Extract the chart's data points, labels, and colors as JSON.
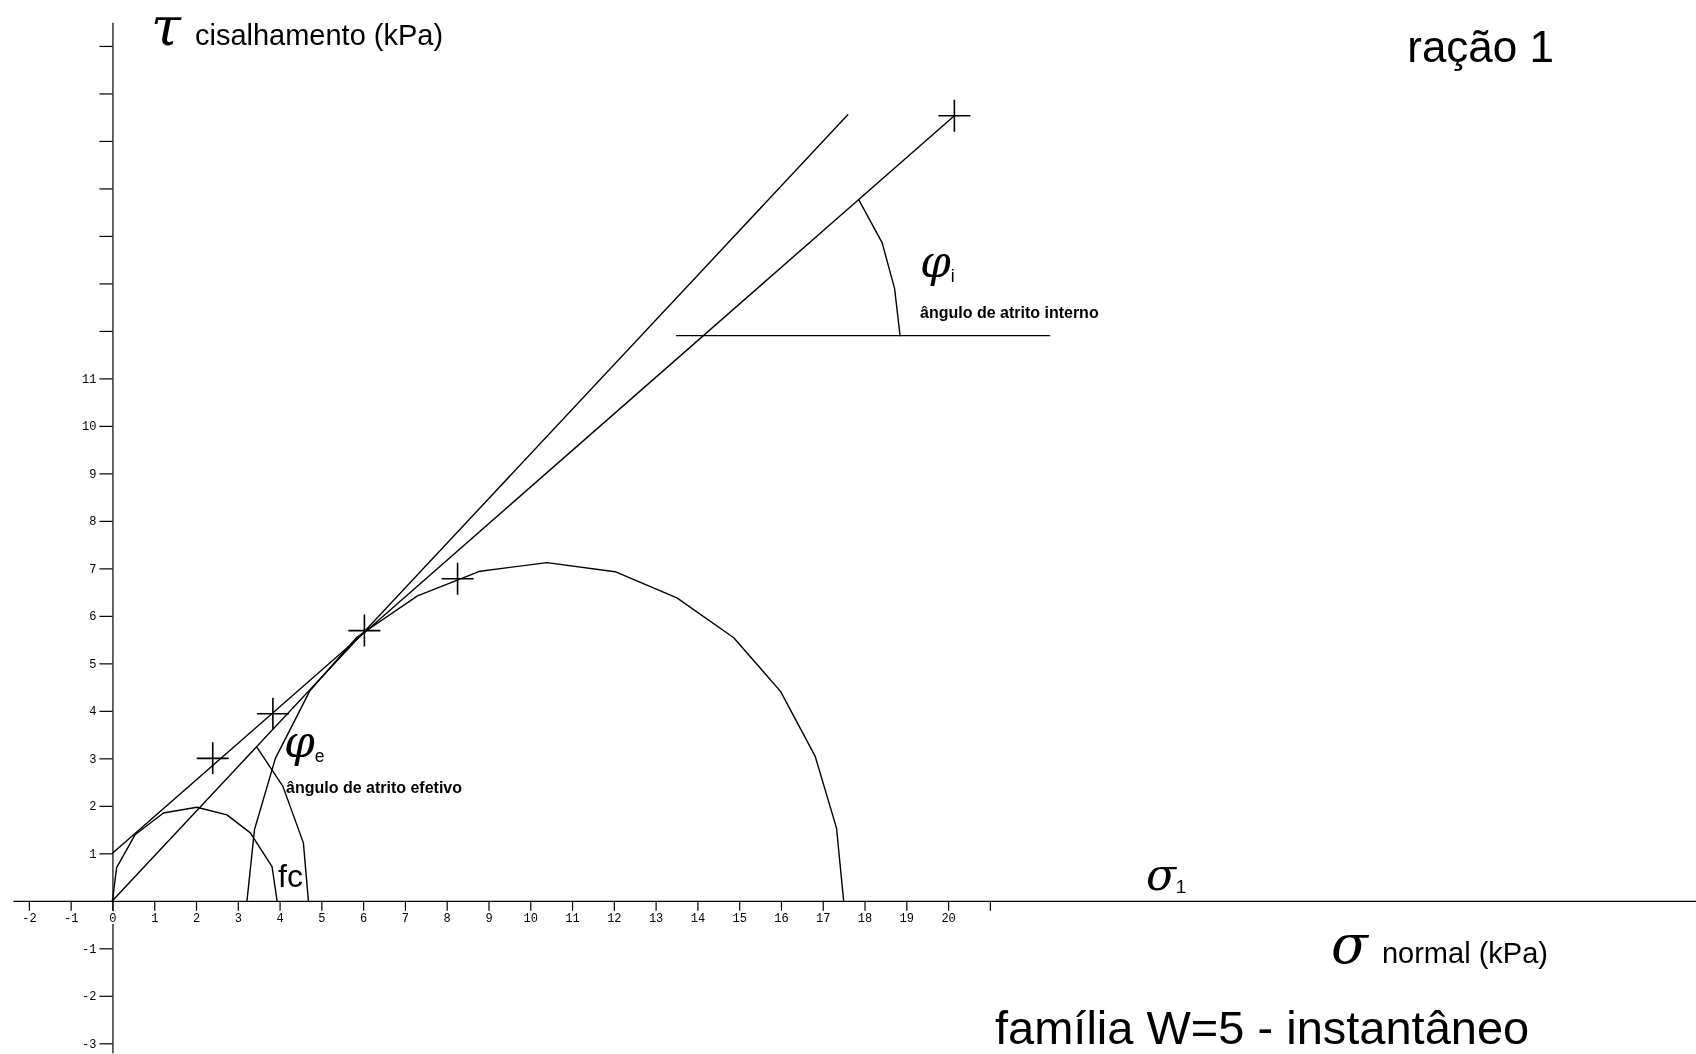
{
  "chart_data": {
    "type": "line",
    "title": "ração 1",
    "subtitle": "família W=5 - instantâneo",
    "xlabel": "σ normal (kPa)",
    "ylabel": "τ cisalhamento (kPa)",
    "xlim": [
      -2.38,
      37.9
    ],
    "ylim": [
      -3.2,
      18.5
    ],
    "xticks": [
      -2,
      -1,
      0,
      1,
      2,
      3,
      4,
      5,
      6,
      7,
      8,
      9,
      10,
      11,
      12,
      13,
      14,
      15,
      16,
      17,
      18,
      19,
      20,
      {
        "value": 21,
        "label": null
      }
    ],
    "yticks": [
      -3,
      -2,
      -1,
      1,
      2,
      3,
      4,
      5,
      6,
      7,
      8,
      9,
      10,
      11,
      {
        "value": 12,
        "label": null
      },
      {
        "value": 13,
        "label": null
      },
      {
        "value": 14,
        "label": null
      },
      {
        "value": 15,
        "label": null
      },
      {
        "value": 16,
        "label": null
      },
      {
        "value": 17,
        "label": null
      },
      {
        "value": 18,
        "label": null
      }
    ],
    "series": [
      {
        "color": "#000000",
        "x": [
          0,
          20.15
        ],
        "values": [
          1.0,
          16.53
        ]
      },
      {
        "color": "#000000",
        "x": [
          0,
          17.6
        ],
        "values": [
          0,
          16.55
        ]
      },
      {
        "color": "#000000",
        "x": [
          3.22,
          3.4,
          3.9,
          4.73,
          5.85,
          7.3,
          8.8,
          10.4,
          12.03,
          13.51,
          14.87,
          15.99,
          16.82,
          17.33,
          17.5
        ],
        "values": [
          0,
          1.5,
          3.0,
          4.43,
          5.55,
          6.42,
          6.94,
          7.12,
          6.93,
          6.38,
          5.54,
          4.41,
          3.04,
          1.53,
          0
        ]
      },
      {
        "color": "#000000",
        "x": [
          0,
          0.1,
          0.54,
          1.22,
          2.02,
          2.74,
          3.3,
          3.82,
          3.94
        ],
        "values": [
          0,
          0.7,
          1.39,
          1.85,
          1.97,
          1.81,
          1.43,
          0.72,
          0
        ]
      },
      {
        "color": "#000000",
        "x": [
          4.69,
          4.57,
          4.08,
          3.46
        ],
        "values": [
          0,
          1.22,
          2.41,
          3.23
        ]
      },
      {
        "color": "#000000",
        "x": [
          17.87,
          18.42,
          18.72,
          18.85
        ],
        "values": [
          14.75,
          13.86,
          12.89,
          11.9
        ]
      },
      {
        "color": "#000000",
        "x": [
          13.5,
          22.43
        ],
        "values": [
          11.9,
          11.9
        ]
      },
      {
        "type": "scatter",
        "marker": "cross",
        "color": "#000000",
        "x": [
          2.4,
          3.84,
          6.03,
          8.26,
          20.15
        ],
        "values": [
          3.0,
          3.94,
          5.69,
          6.78,
          16.53
        ]
      }
    ],
    "annotations": [
      "φ$_{i}$",
      "ângulo de atrito interno",
      "φ$_{e}$",
      "ângulo de atrito efetivo",
      "fc",
      "σ₁"
    ]
  }
}
